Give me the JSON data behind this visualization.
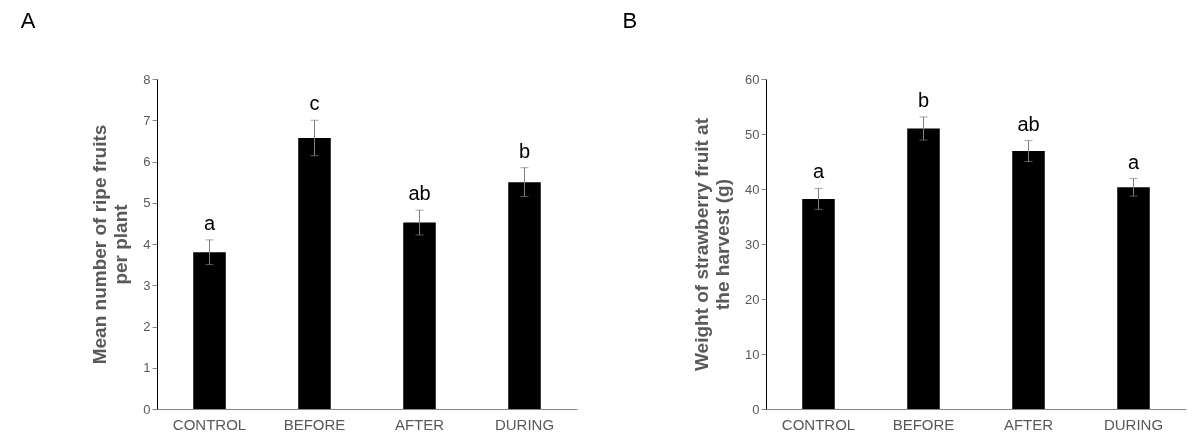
{
  "chart_data": [
    {
      "type": "bar",
      "title": "A",
      "ylabel": "Mean number of ripe fruits per plant",
      "categories": [
        "CONTROL",
        "BEFORE",
        "AFTER",
        "DURING"
      ],
      "values": [
        3.8,
        6.57,
        4.52,
        5.5
      ],
      "errors": [
        0.3,
        0.43,
        0.3,
        0.35
      ],
      "color": "#000000",
      "ylim": [
        0,
        8
      ],
      "yticks": [
        0,
        1,
        2,
        3,
        4,
        5,
        6,
        7,
        8
      ],
      "grid": false,
      "annotations": [
        {
          "text": "a",
          "x": "CONTROL",
          "y": 4.1
        },
        {
          "text": "c",
          "x": "BEFORE",
          "y": 7.0
        },
        {
          "text": "ab",
          "x": "AFTER",
          "y": 4.82
        },
        {
          "text": "b",
          "x": "DURING",
          "y": 5.85
        }
      ]
    },
    {
      "type": "bar",
      "title": "B",
      "ylabel": "Weight of strawberry fruit at the harvest (g)",
      "categories": [
        "CONTROL",
        "BEFORE",
        "AFTER",
        "DURING"
      ],
      "values": [
        38.2,
        51,
        46.9,
        40.3
      ],
      "errors": [
        1.9,
        2.1,
        1.9,
        1.6
      ],
      "color": "#000000",
      "ylim": [
        0,
        60
      ],
      "yticks": [
        0,
        10,
        20,
        30,
        40,
        50,
        60
      ],
      "grid": false,
      "annotations": [
        {
          "text": "a",
          "x": "CONTROL",
          "y": 40.1
        },
        {
          "text": "b",
          "x": "BEFORE",
          "y": 53.1
        },
        {
          "text": "ab",
          "x": "AFTER",
          "y": 48.8
        },
        {
          "text": "a",
          "x": "DURING",
          "y": 41.9
        }
      ]
    }
  ]
}
